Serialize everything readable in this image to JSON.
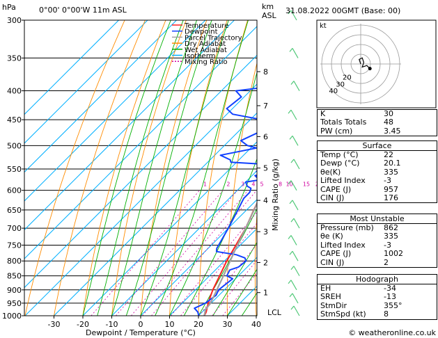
{
  "header": {
    "pressure_unit": "hPa",
    "location": "0°00' 0°00'W  11m  ASL",
    "altitude_unit": "km",
    "altitude_ref": "ASL",
    "datetime": "31.08.2022  00GMT  (Base: 00)",
    "mixing_ratio_axis": "Mixing Ratio (g/kg)",
    "lcl": "LCL",
    "credit": "© weatheronline.co.uk"
  },
  "chart_data": {
    "type": "skew-t log-p",
    "xlabel": "Dewpoint / Temperature (°C)",
    "ylabel": "hPa",
    "x_ticks": [
      -30,
      -20,
      -10,
      0,
      10,
      20,
      30,
      40
    ],
    "pressure_levels": [
      300,
      350,
      400,
      450,
      500,
      550,
      600,
      650,
      700,
      750,
      800,
      850,
      900,
      950,
      1000
    ],
    "altitude_km_ticks": [
      {
        "km": "1",
        "p": 910
      },
      {
        "km": "2",
        "p": 805
      },
      {
        "km": "3",
        "p": 710
      },
      {
        "km": "4",
        "p": 625
      },
      {
        "km": "5",
        "p": 548
      },
      {
        "km": "6",
        "p": 482
      },
      {
        "km": "7",
        "p": 425
      },
      {
        "km": "8",
        "p": 370
      }
    ],
    "mixing_ratio_labels": [
      "1",
      "2",
      "3",
      "4",
      "5",
      "8",
      "10",
      "15",
      "20",
      "25"
    ],
    "legend": [
      {
        "name": "Temperature",
        "color": "#ff2020"
      },
      {
        "name": "Dewpoint",
        "color": "#1040ff"
      },
      {
        "name": "Parcel Trajectory",
        "color": "#a0a0a0"
      },
      {
        "name": "Dry Adiabat",
        "color": "#ff8c00"
      },
      {
        "name": "Wet Adiabat",
        "color": "#00b000"
      },
      {
        "name": "Isotherm",
        "color": "#00b0ff"
      },
      {
        "name": "Mixing Ratio",
        "color": "#d000a0"
      }
    ],
    "series": [
      {
        "name": "Temperature",
        "color": "#ff2020",
        "points": [
          [
            1000,
            22
          ],
          [
            985,
            21.4
          ],
          [
            950,
            19
          ],
          [
            925,
            17.5
          ],
          [
            900,
            16
          ],
          [
            850,
            13.5
          ],
          [
            800,
            10.8
          ],
          [
            750,
            8.5
          ],
          [
            700,
            6
          ],
          [
            650,
            2.5
          ],
          [
            600,
            -1
          ],
          [
            560,
            -3.5
          ],
          [
            550,
            -4
          ],
          [
            500,
            -7.5
          ],
          [
            450,
            -12.5
          ],
          [
            400,
            -19
          ],
          [
            370,
            -23.5
          ],
          [
            350,
            -26.5
          ],
          [
            330,
            -29.5
          ],
          [
            300,
            -36
          ]
        ]
      },
      {
        "name": "Dewpoint",
        "color": "#1040ff",
        "points": [
          [
            1000,
            20.1
          ],
          [
            985,
            18.5
          ],
          [
            970,
            16
          ],
          [
            960,
            17
          ],
          [
            950,
            18
          ],
          [
            920,
            19
          ],
          [
            900,
            18
          ],
          [
            880,
            18.5
          ],
          [
            860,
            19
          ],
          [
            850,
            16
          ],
          [
            830,
            15
          ],
          [
            820,
            17
          ],
          [
            800,
            17.5
          ],
          [
            790,
            16
          ],
          [
            780,
            12
          ],
          [
            770,
            4
          ],
          [
            760,
            3
          ],
          [
            700,
            0
          ],
          [
            650,
            -3
          ],
          [
            620,
            -5
          ],
          [
            605,
            -5
          ],
          [
            595,
            -6
          ],
          [
            590,
            -8
          ],
          [
            580,
            -10
          ],
          [
            575,
            -6
          ],
          [
            565,
            -9
          ],
          [
            560,
            -6.5
          ],
          [
            555,
            -10
          ],
          [
            550,
            -6
          ],
          [
            545,
            -11
          ],
          [
            540,
            -8
          ],
          [
            535,
            -22
          ],
          [
            530,
            -23
          ],
          [
            520,
            -28
          ],
          [
            505,
            -18
          ],
          [
            500,
            -22
          ],
          [
            490,
            -26
          ],
          [
            470,
            -22
          ],
          [
            455,
            -20
          ],
          [
            450,
            -26
          ],
          [
            440,
            -38
          ],
          [
            430,
            -42
          ],
          [
            410,
            -41
          ],
          [
            400,
            -45
          ],
          [
            395,
            -37
          ],
          [
            385,
            -40
          ],
          [
            375,
            -33
          ],
          [
            370,
            -34
          ],
          [
            360,
            -43
          ],
          [
            350,
            -47
          ],
          [
            320,
            -53
          ],
          [
            300,
            -58
          ]
        ]
      },
      {
        "name": "Parcel Trajectory",
        "color": "#a0a0a0",
        "points": [
          [
            1000,
            22
          ],
          [
            975,
            20.3
          ],
          [
            950,
            19.8
          ],
          [
            900,
            17.4
          ],
          [
            850,
            14.8
          ],
          [
            800,
            12
          ],
          [
            750,
            9
          ],
          [
            700,
            6
          ],
          [
            650,
            2.6
          ],
          [
            600,
            -1
          ],
          [
            550,
            -5
          ],
          [
            500,
            -9.5
          ],
          [
            450,
            -14.5
          ],
          [
            400,
            -20.5
          ],
          [
            350,
            -27.5
          ],
          [
            300,
            -36
          ]
        ]
      }
    ],
    "indices": {
      "K": "30",
      "Totals Totals": "48",
      "PW (cm)": "3.45"
    },
    "surface": {
      "title": "Surface",
      "rows": [
        {
          "label": "Temp (°C)",
          "value": "22"
        },
        {
          "label": "Dewp (°C)",
          "value": "20.1"
        },
        {
          "label": "θe(K)",
          "value": "335"
        },
        {
          "label": "Lifted Index",
          "value": "-3"
        },
        {
          "label": "CAPE (J)",
          "value": "957"
        },
        {
          "label": "CIN (J)",
          "value": "176"
        }
      ]
    },
    "most_unstable": {
      "title": "Most Unstable",
      "rows": [
        {
          "label": "Pressure (mb)",
          "value": "862"
        },
        {
          "label": "θe (K)",
          "value": "335"
        },
        {
          "label": "Lifted Index",
          "value": "-3"
        },
        {
          "label": "CAPE (J)",
          "value": "1002"
        },
        {
          "label": "CIN (J)",
          "value": "2"
        }
      ]
    },
    "hodograph_table": {
      "title": "Hodograph",
      "rows": [
        {
          "label": "EH",
          "value": "-34"
        },
        {
          "label": "SREH",
          "value": "-13"
        },
        {
          "label": "StmDir",
          "value": "355°"
        },
        {
          "label": "StmSpd (kt)",
          "value": "8"
        }
      ]
    },
    "hodograph": {
      "unit": "kt",
      "ring_labels": [
        "20",
        "30",
        "40"
      ],
      "trace": [
        [
          0,
          0
        ],
        [
          -1,
          3
        ],
        [
          1,
          4
        ],
        [
          2,
          1
        ],
        [
          1,
          -2
        ],
        [
          4,
          -1
        ],
        [
          6,
          -3
        ]
      ]
    }
  }
}
